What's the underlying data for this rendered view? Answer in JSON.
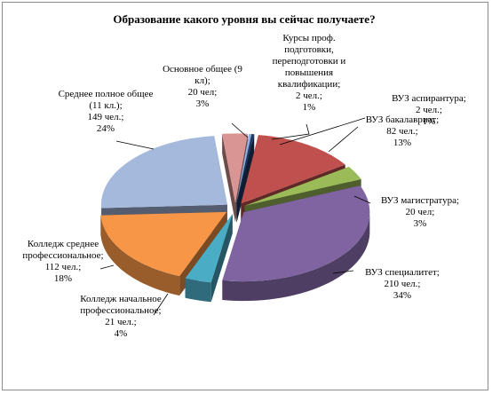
{
  "chart_data": {
    "type": "pie",
    "variant": "3d-exploded",
    "title": "Образование какого уровня вы сейчас получаете?",
    "legend": "none",
    "slices": [
      {
        "name": "Основное общее (9 кл)",
        "count": 20,
        "percent": 3,
        "color": "#d99594",
        "label_lines": [
          "Основное общее (9",
          "кл);",
          "20 чел;",
          "3%"
        ]
      },
      {
        "name": "Курсы проф. подготовки, переподготовки и повышения квалификации",
        "count": 2,
        "percent": 1,
        "color": "#8db3e2",
        "label_lines": [
          "Курсы проф.",
          "подготовки,",
          "переподготовки и",
          "повышения",
          "квалификации;",
          "2 чел.;",
          "1%"
        ]
      },
      {
        "name": "ВУЗ аспирантура",
        "count": 2,
        "percent": 1,
        "color": "#1f3864",
        "label_lines": [
          "ВУЗ аспирантура;",
          "2 чел.;",
          "1%"
        ]
      },
      {
        "name": "ВУЗ бакалавриат",
        "count": 82,
        "percent": 13,
        "color": "#c0504d",
        "label_lines": [
          "ВУЗ бакалавриат;",
          "82 чел.;",
          "13%"
        ]
      },
      {
        "name": "ВУЗ магистратура",
        "count": 20,
        "percent": 3,
        "color": "#9bbb59",
        "label_lines": [
          "ВУЗ магистратура;",
          "20 чел;",
          "3%"
        ]
      },
      {
        "name": "ВУЗ специалитет",
        "count": 210,
        "percent": 34,
        "color": "#8064a2",
        "label_lines": [
          "ВУЗ специалитет;",
          "210 чел.;",
          "34%"
        ]
      },
      {
        "name": "Колледж начальное профессиональное",
        "count": 21,
        "percent": 4,
        "color": "#4bacc6",
        "label_lines": [
          "Колледж начальное",
          "профессиональное;",
          "21 чел.;",
          "4%"
        ]
      },
      {
        "name": "Колледж среднее профессиональное",
        "count": 112,
        "percent": 18,
        "color": "#f79646",
        "label_lines": [
          "Колледж среднее",
          "профессиональное;",
          "112 чел.;",
          "18%"
        ]
      },
      {
        "name": "Среднее полное общее (11 кл.)",
        "count": 149,
        "percent": 24,
        "color": "#a5b9dd",
        "label_lines": [
          "Среднее полное общее",
          "(11 кл.);",
          "149 чел.;",
          "24%"
        ]
      }
    ]
  }
}
